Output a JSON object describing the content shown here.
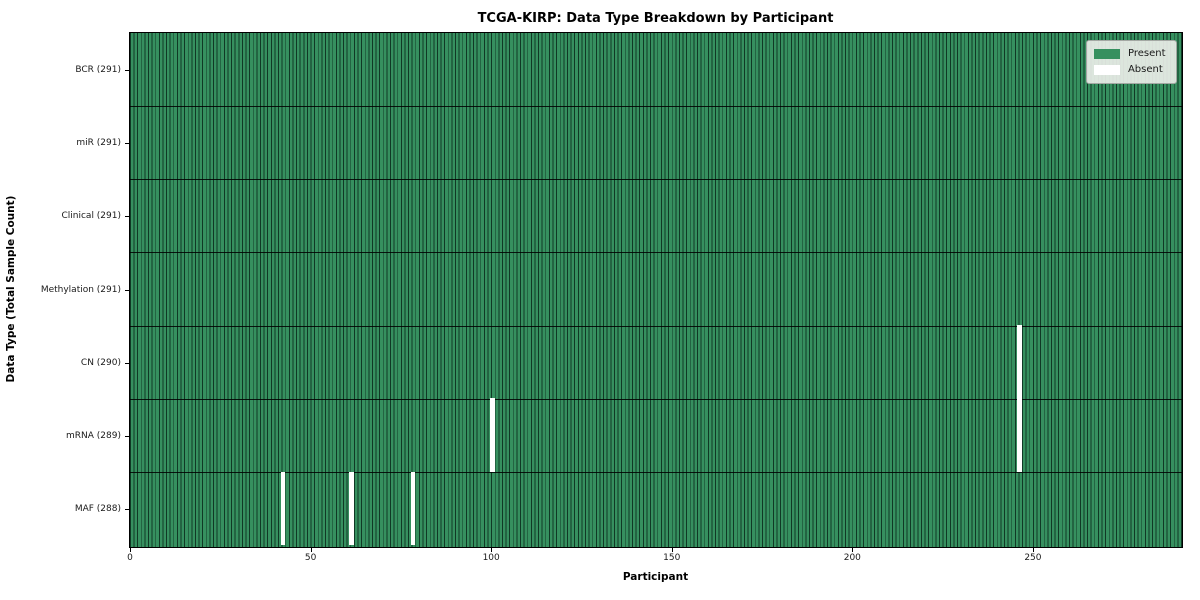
{
  "figure": {
    "title": "TCGA-KIRP: Data Type Breakdown by Participant",
    "xlabel": "Participant",
    "ylabel": "Data Type (Total Sample Count)"
  },
  "legend": {
    "items": [
      {
        "label": "Present",
        "color": "#36905f"
      },
      {
        "label": "Absent",
        "color": "#ffffff"
      }
    ]
  },
  "chart_data": {
    "type": "heatmap",
    "title": "TCGA-KIRP: Data Type Breakdown by Participant",
    "xlabel": "Participant",
    "ylabel": "Data Type (Total Sample Count)",
    "legend": [
      "Present",
      "Absent"
    ],
    "legend_position": "upper right",
    "grid": false,
    "n_participants": 291,
    "x_range": [
      0,
      291
    ],
    "x_ticks": [
      0,
      50,
      100,
      150,
      200,
      250
    ],
    "colors": {
      "present": "#36905f",
      "absent": "#ffffff",
      "cell_edge": "#0d2618",
      "row_divider": "#000000"
    },
    "rows": [
      {
        "label": "BCR (291)",
        "data_type": "BCR",
        "total_samples": 291,
        "absent_participants": []
      },
      {
        "label": "miR (291)",
        "data_type": "miR",
        "total_samples": 291,
        "absent_participants": []
      },
      {
        "label": "Clinical (291)",
        "data_type": "Clinical",
        "total_samples": 291,
        "absent_participants": []
      },
      {
        "label": "Methylation (291)",
        "data_type": "Methylation",
        "total_samples": 291,
        "absent_participants": []
      },
      {
        "label": "CN (290)",
        "data_type": "CN",
        "total_samples": 290,
        "absent_participants": [
          246
        ]
      },
      {
        "label": "mRNA (289)",
        "data_type": "mRNA",
        "total_samples": 289,
        "absent_participants": [
          100,
          246
        ]
      },
      {
        "label": "MAF (288)",
        "data_type": "MAF",
        "total_samples": 288,
        "absent_participants": [
          42,
          61,
          78
        ]
      }
    ]
  }
}
